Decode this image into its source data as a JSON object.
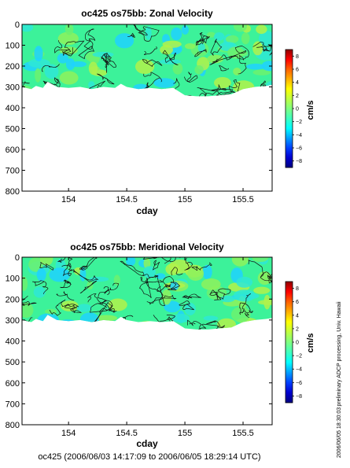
{
  "chart_data": [
    {
      "type": "heatmap",
      "title": "oc425 os75bb: Zonal Velocity",
      "xlabel": "cday",
      "ylabel": "",
      "x_range": [
        153.6,
        155.75
      ],
      "y_range": [
        0,
        800
      ],
      "y_inverted": true,
      "xticks": [
        154,
        154.5,
        155,
        155.5
      ],
      "xtick_labels": [
        "154",
        "154.5",
        "155",
        "155.5"
      ],
      "yticks": [
        0,
        100,
        200,
        300,
        400,
        500,
        600,
        700,
        800
      ],
      "ytick_labels": [
        "0",
        "100",
        "200",
        "300",
        "400",
        "500",
        "600",
        "700",
        "800"
      ],
      "grid": false,
      "colorbar": {
        "range": [
          -9,
          9
        ],
        "ticks": [
          8,
          6,
          4,
          2,
          0,
          -2,
          -4,
          -6,
          -8
        ],
        "tick_labels": [
          "8",
          "6",
          "4",
          "2",
          "0",
          "−2",
          "−4",
          "−6",
          "−8"
        ],
        "unit": "cm/s"
      },
      "data_bottom": {
        "x": [
          153.6,
          153.68,
          153.72,
          153.78,
          153.82,
          153.9,
          154.0,
          154.1,
          154.2,
          154.3,
          154.4,
          154.45,
          154.5,
          154.6,
          154.7,
          154.8,
          154.9,
          155.0,
          155.1,
          155.2,
          155.3,
          155.4,
          155.5,
          155.6,
          155.7,
          155.75
        ],
        "depth": [
          300,
          310,
          295,
          305,
          275,
          300,
          305,
          300,
          310,
          300,
          305,
          285,
          300,
          310,
          305,
          310,
          305,
          340,
          345,
          345,
          340,
          335,
          310,
          300,
          295,
          290
        ]
      }
    },
    {
      "type": "heatmap",
      "title": "oc425 os75bb: Meridional Velocity",
      "xlabel": "cday",
      "ylabel": "",
      "x_range": [
        153.6,
        155.75
      ],
      "y_range": [
        0,
        800
      ],
      "y_inverted": true,
      "xticks": [
        154,
        154.5,
        155,
        155.5
      ],
      "xtick_labels": [
        "154",
        "154.5",
        "155",
        "155.5"
      ],
      "yticks": [
        0,
        100,
        200,
        300,
        400,
        500,
        600,
        700,
        800
      ],
      "ytick_labels": [
        "0",
        "100",
        "200",
        "300",
        "400",
        "500",
        "600",
        "700",
        "800"
      ],
      "grid": false,
      "colorbar": {
        "range": [
          -9,
          9
        ],
        "ticks": [
          8,
          6,
          4,
          2,
          0,
          -2,
          -4,
          -6,
          -8
        ],
        "tick_labels": [
          "8",
          "6",
          "4",
          "2",
          "0",
          "−2",
          "−4",
          "−6",
          "−8"
        ],
        "unit": "cm/s"
      },
      "data_bottom": {
        "x": [
          153.6,
          153.68,
          153.72,
          153.78,
          153.82,
          153.9,
          154.0,
          154.1,
          154.2,
          154.3,
          154.4,
          154.45,
          154.5,
          154.6,
          154.7,
          154.8,
          154.9,
          155.0,
          155.1,
          155.2,
          155.3,
          155.4,
          155.5,
          155.6,
          155.7,
          155.75
        ],
        "depth": [
          300,
          310,
          295,
          305,
          275,
          300,
          305,
          300,
          310,
          300,
          305,
          285,
          300,
          310,
          305,
          310,
          305,
          340,
          345,
          345,
          340,
          335,
          310,
          300,
          295,
          290
        ]
      }
    }
  ],
  "side_note": "preliminary ADCP processing,   Univ. Hawaii",
  "timestamp": "2006/06/05 18:30:03",
  "footer": "oc425 (2006/06/03 14:17:09 to 2006/06/05 18:29:14 UTC)",
  "colors": {
    "base": "#3cf29a",
    "contour": "#111111",
    "blobs": [
      "#8ef25c",
      "#2ee8d6",
      "#b2f24a",
      "#1fd2ff",
      "#6cf26e"
    ],
    "colormap": [
      "#000080",
      "#0000d0",
      "#0040ff",
      "#00a0ff",
      "#00ffff",
      "#40ffbf",
      "#80ff80",
      "#c0ff40",
      "#ffff00",
      "#ffb000",
      "#ff6000",
      "#ff0000",
      "#900000"
    ]
  }
}
